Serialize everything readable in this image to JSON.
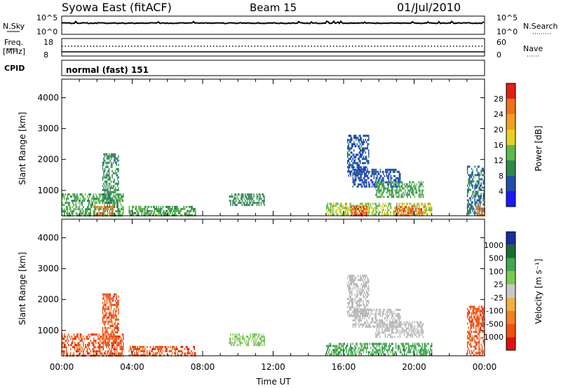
{
  "header": {
    "station": "Syowa East (fitACF)",
    "beam": "Beam 15",
    "date": "01/Jul/2010"
  },
  "panels": {
    "nsky_label": "N.Sky",
    "nsky_top": "10^5",
    "nsky_bottom": "10^0",
    "nsearch_label": "N.Search",
    "nsearch_top": "10^5",
    "nsearch_bottom": "10^0",
    "freq_label": "Freq.",
    "freq_unit": "[MHz]",
    "freq_top": "18",
    "freq_bottom": "8",
    "nave_label": "Nave",
    "nave_top": "60",
    "nave_bottom": "0",
    "cpid_label": "CPID",
    "cpid_value": "normal (fast) 151"
  },
  "colors": {
    "power_scale": [
      "#1a1aff",
      "#2050a8",
      "#2e8a4a",
      "#5fb84a",
      "#e8d020",
      "#f0a020",
      "#f07020",
      "#e02010"
    ],
    "velocity_scale": [
      "#e01010",
      "#f05010",
      "#f08020",
      "#f0b040",
      "#c8c8c8",
      "#7cc850",
      "#40a850",
      "#1c6c30",
      "#1a2ea0"
    ],
    "ground_scatter": "#b8b8b8"
  },
  "chart_data": [
    {
      "type": "heatmap",
      "name": "power",
      "xlabel": "Time UT",
      "ylabel": "Slant Range [km]",
      "xlim": [
        0,
        24
      ],
      "ylim": [
        180,
        4600
      ],
      "yticks": [
        1000,
        2000,
        3000,
        4000
      ],
      "colorbar": {
        "label": "Power [dB]",
        "range": [
          0,
          32
        ],
        "ticks": [
          4,
          8,
          12,
          16,
          20,
          24,
          28
        ]
      },
      "echo_regions": [
        {
          "t0": 0.0,
          "t1": 3.5,
          "r0": 200,
          "r1": 900,
          "value": 12
        },
        {
          "t0": 1.8,
          "t1": 2.9,
          "r0": 200,
          "r1": 500,
          "value": 26
        },
        {
          "t0": 2.3,
          "t1": 3.2,
          "r0": 600,
          "r1": 2200,
          "value": 10
        },
        {
          "t0": 3.8,
          "t1": 7.6,
          "r0": 200,
          "r1": 500,
          "value": 12
        },
        {
          "t0": 9.5,
          "t1": 11.5,
          "r0": 500,
          "r1": 900,
          "value": 10
        },
        {
          "t0": 15.0,
          "t1": 21.0,
          "r0": 200,
          "r1": 600,
          "value": 16
        },
        {
          "t0": 16.4,
          "t1": 17.3,
          "r0": 200,
          "r1": 500,
          "value": 28
        },
        {
          "t0": 18.9,
          "t1": 20.6,
          "r0": 200,
          "r1": 500,
          "value": 27
        },
        {
          "t0": 16.5,
          "t1": 19.2,
          "r0": 1100,
          "r1": 1700,
          "value": 6
        },
        {
          "t0": 16.2,
          "t1": 17.4,
          "r0": 1500,
          "r1": 2800,
          "value": 6
        },
        {
          "t0": 17.8,
          "t1": 20.5,
          "r0": 800,
          "r1": 1300,
          "value": 12
        },
        {
          "t0": 23.0,
          "t1": 24.0,
          "r0": 200,
          "r1": 1800,
          "value": 8
        },
        {
          "t0": 23.5,
          "t1": 24.0,
          "r0": 200,
          "r1": 500,
          "value": 26
        }
      ]
    },
    {
      "type": "heatmap",
      "name": "velocity",
      "xlabel": "Time UT",
      "ylabel": "Slant Range [km]",
      "xlim": [
        0,
        24
      ],
      "ylim": [
        180,
        4600
      ],
      "yticks": [
        1000,
        2000,
        3000,
        4000
      ],
      "xticks": [
        "00:00",
        "04:00",
        "08:00",
        "12:00",
        "16:00",
        "20:00",
        "00:00"
      ],
      "colorbar": {
        "label": "Velocity [m s⁻¹]",
        "boundaries": [
          "1000",
          "500",
          "100",
          "25",
          "-25",
          "-100",
          "-500",
          "-1000"
        ]
      },
      "echo_regions": [
        {
          "t0": 0.0,
          "t1": 3.5,
          "r0": 200,
          "r1": 900,
          "value": -200
        },
        {
          "t0": 2.3,
          "t1": 3.2,
          "r0": 600,
          "r1": 2200,
          "value": -150
        },
        {
          "t0": 3.8,
          "t1": 7.6,
          "r0": 200,
          "r1": 500,
          "value": -200
        },
        {
          "t0": 9.5,
          "t1": 11.5,
          "r0": 500,
          "r1": 900,
          "value": 60
        },
        {
          "t0": 15.0,
          "t1": 21.0,
          "r0": 200,
          "r1": 600,
          "value": 300
        },
        {
          "t0": 16.5,
          "t1": 19.2,
          "r0": 1100,
          "r1": 1700,
          "value": 0
        },
        {
          "t0": 16.2,
          "t1": 17.4,
          "r0": 1500,
          "r1": 2800,
          "value": 0
        },
        {
          "t0": 17.8,
          "t1": 20.5,
          "r0": 800,
          "r1": 1300,
          "value": 0
        },
        {
          "t0": 23.0,
          "t1": 24.0,
          "r0": 200,
          "r1": 1800,
          "value": -200
        }
      ]
    }
  ]
}
